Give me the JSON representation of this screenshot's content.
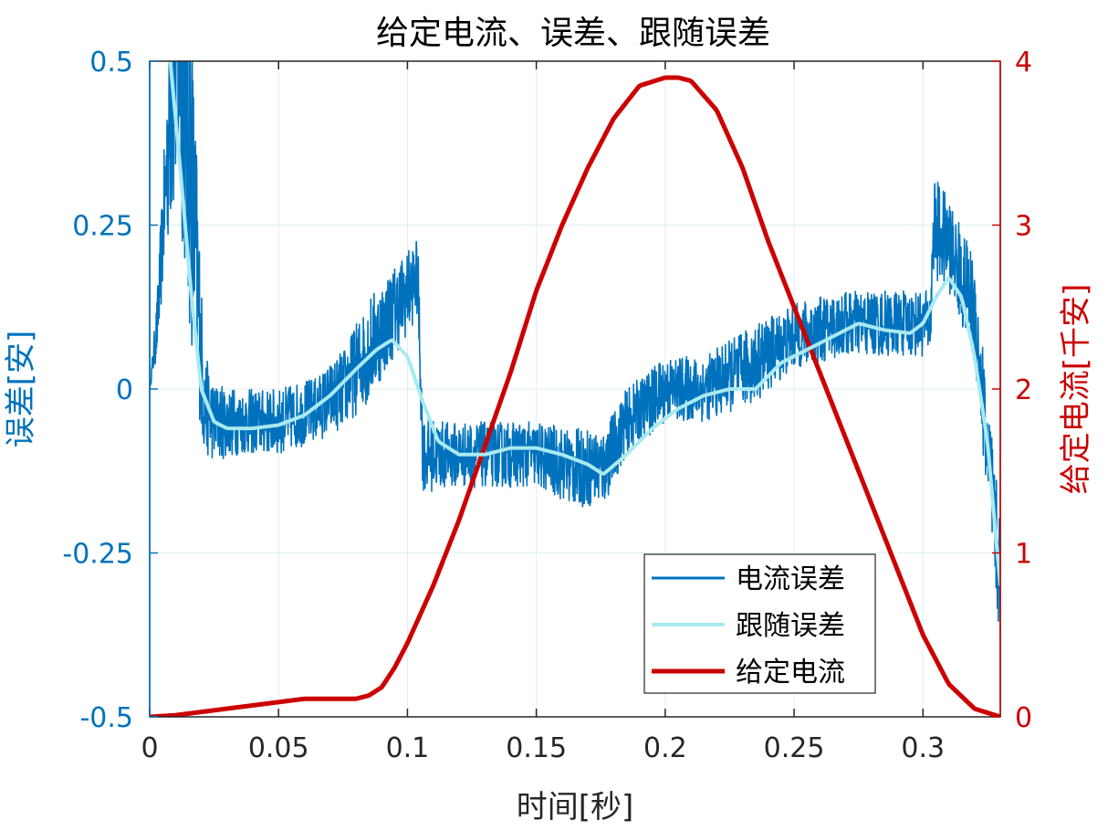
{
  "chart_data": {
    "type": "line",
    "title": "给定电流、误差、跟随误差",
    "xlabel": "时间[秒]",
    "ylabel_left": "误差[安]",
    "ylabel_right": "给定电流[千安]",
    "xlim": [
      0,
      0.33
    ],
    "ylim_left": [
      -0.5,
      0.5
    ],
    "ylim_right": [
      0,
      4
    ],
    "x_ticks": [
      0,
      0.05,
      0.1,
      0.15,
      0.2,
      0.25,
      0.3
    ],
    "x_tick_labels": [
      "0",
      "0.05",
      "0.1",
      "0.15",
      "0.2",
      "0.25",
      "0.3"
    ],
    "y_left_ticks": [
      -0.5,
      -0.25,
      0,
      0.25,
      0.5
    ],
    "y_left_tick_labels": [
      "-0.5",
      "-0.25",
      "0",
      "0.25",
      "0.5"
    ],
    "y_right_ticks": [
      0,
      1,
      2,
      3,
      4
    ],
    "y_right_tick_labels": [
      "0",
      "1",
      "2",
      "3",
      "4"
    ],
    "grid": true,
    "legend_position": "bottom-right",
    "colors": {
      "current_error": "#0072BD",
      "tracking_error": "#A8EAF0",
      "given_current": "#CC0000",
      "left_axis": "#0072BD",
      "right_axis": "#CC0000"
    },
    "series": [
      {
        "name": "电流误差",
        "axis": "left",
        "x": [
          0,
          0.003,
          0.006,
          0.009,
          0.012,
          0.015,
          0.018,
          0.021,
          0.025,
          0.035,
          0.05,
          0.065,
          0.075,
          0.085,
          0.095,
          0.104,
          0.106,
          0.115,
          0.13,
          0.15,
          0.165,
          0.176,
          0.185,
          0.2,
          0.215,
          0.235,
          0.25,
          0.27,
          0.29,
          0.303,
          0.304,
          0.31,
          0.32,
          0.33
        ],
        "y": [
          0,
          0.1,
          0.3,
          0.5,
          0.55,
          0.4,
          0.2,
          -0.02,
          -0.05,
          -0.05,
          -0.05,
          -0.03,
          0.0,
          0.06,
          0.12,
          0.17,
          -0.1,
          -0.1,
          -0.1,
          -0.1,
          -0.12,
          -0.12,
          -0.05,
          0.0,
          0.0,
          0.04,
          0.08,
          0.1,
          0.1,
          0.1,
          0.25,
          0.22,
          0.12,
          -0.3
        ],
        "noise_amplitude": [
          0,
          0.05,
          0.1,
          0.25,
          0.3,
          0.3,
          0.2,
          0.08,
          0.06,
          0.05,
          0.05,
          0.05,
          0.06,
          0.08,
          0.07,
          0.06,
          0.06,
          0.05,
          0.05,
          0.05,
          0.06,
          0.06,
          0.05,
          0.05,
          0.05,
          0.06,
          0.05,
          0.05,
          0.05,
          0.05,
          0.08,
          0.07,
          0.08,
          0.1
        ]
      },
      {
        "name": "跟随误差",
        "axis": "left",
        "x": [
          0.008,
          0.012,
          0.016,
          0.02,
          0.025,
          0.03,
          0.04,
          0.05,
          0.06,
          0.07,
          0.08,
          0.088,
          0.094,
          0.1,
          0.106,
          0.112,
          0.12,
          0.13,
          0.14,
          0.15,
          0.16,
          0.17,
          0.176,
          0.185,
          0.195,
          0.205,
          0.215,
          0.225,
          0.235,
          0.245,
          0.255,
          0.265,
          0.275,
          0.285,
          0.295,
          0.3,
          0.305,
          0.31,
          0.315,
          0.32,
          0.325,
          0.33
        ],
        "y": [
          0.5,
          0.33,
          0.15,
          0.0,
          -0.05,
          -0.06,
          -0.06,
          -0.055,
          -0.04,
          -0.01,
          0.03,
          0.06,
          0.075,
          0.05,
          -0.02,
          -0.08,
          -0.1,
          -0.1,
          -0.09,
          -0.09,
          -0.1,
          -0.115,
          -0.13,
          -0.1,
          -0.06,
          -0.03,
          -0.01,
          0.0,
          0.0,
          0.04,
          0.06,
          0.08,
          0.1,
          0.09,
          0.085,
          0.1,
          0.14,
          0.17,
          0.14,
          0.05,
          -0.08,
          -0.3
        ]
      },
      {
        "name": "给定电流",
        "axis": "right",
        "x": [
          0,
          0.01,
          0.02,
          0.03,
          0.04,
          0.05,
          0.06,
          0.07,
          0.08,
          0.085,
          0.09,
          0.095,
          0.1,
          0.11,
          0.12,
          0.13,
          0.14,
          0.15,
          0.16,
          0.17,
          0.18,
          0.19,
          0.2,
          0.205,
          0.21,
          0.22,
          0.23,
          0.24,
          0.25,
          0.26,
          0.27,
          0.28,
          0.29,
          0.3,
          0.31,
          0.32,
          0.33
        ],
        "y": [
          0,
          0.01,
          0.03,
          0.05,
          0.07,
          0.09,
          0.11,
          0.11,
          0.11,
          0.13,
          0.18,
          0.3,
          0.45,
          0.8,
          1.2,
          1.65,
          2.1,
          2.6,
          3.0,
          3.35,
          3.65,
          3.85,
          3.9,
          3.9,
          3.88,
          3.7,
          3.35,
          2.9,
          2.5,
          2.1,
          1.7,
          1.3,
          0.9,
          0.5,
          0.2,
          0.05,
          0
        ]
      }
    ]
  }
}
